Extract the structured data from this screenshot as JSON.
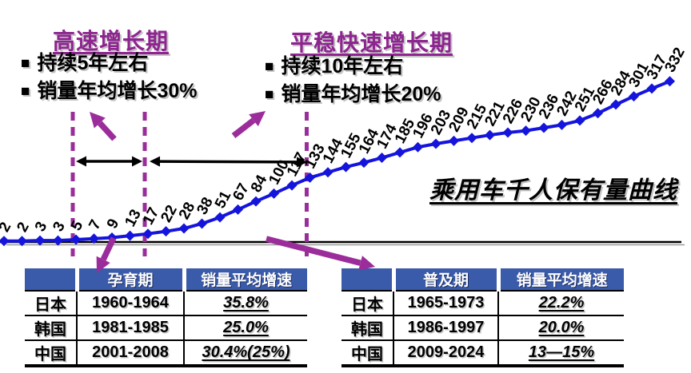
{
  "colors": {
    "purple_title": "#8E2490",
    "purple_accent": "#9B2D9B",
    "curve_blue": "#1414DC",
    "table_header_blue": "#3A5BA9",
    "shadow_gray": "#C4C4C4",
    "axis_black": "#000000"
  },
  "bullet_glyph": "■",
  "growth_periods": [
    {
      "title": "高速增长期",
      "bullets": [
        "持续5年左右",
        "销量年均增长30%"
      ]
    },
    {
      "title": "平稳快速增长期",
      "bullets": [
        "持续10年左右",
        "销量年均增长20%"
      ]
    }
  ],
  "caption": "乘用车千人保有量曲线",
  "chart_data": {
    "type": "line",
    "title": "乘用车千人保有量曲线",
    "values": [
      2,
      2,
      3,
      3,
      5,
      7,
      9,
      13,
      17,
      22,
      28,
      38,
      51,
      67,
      84,
      100,
      117,
      133,
      144,
      155,
      164,
      174,
      185,
      196,
      203,
      209,
      215,
      221,
      226,
      230,
      236,
      242,
      251,
      266,
      284,
      301,
      317,
      332
    ],
    "marker": "diamond",
    "data_labels": true,
    "label_rotation_deg": -62,
    "grid": false,
    "ylim": [
      0,
      350
    ],
    "annotations": {
      "dashed_lines_at_values": [
        5,
        17,
        133
      ],
      "phase_spans": [
        {
          "label": "高速增长期",
          "from_value": 5,
          "to_value": 17
        },
        {
          "label": "平稳快速增长期",
          "from_value": 17,
          "to_value": 133
        }
      ]
    }
  },
  "tables": [
    {
      "headers": [
        "",
        "孕育期",
        "销量平均增速"
      ],
      "rows": [
        [
          "日本",
          "1960-1964",
          "35.8%"
        ],
        [
          "韩国",
          "1981-1985",
          "25.0%"
        ],
        [
          "中国",
          "2001-2008",
          "30.4%(25%)"
        ]
      ]
    },
    {
      "headers": [
        "",
        "普及期",
        "销量平均增速"
      ],
      "rows": [
        [
          "日本",
          "1965-1973",
          "22.2%"
        ],
        [
          "韩国",
          "1986-1997",
          "20.0%"
        ],
        [
          "中国",
          "2009-2024",
          "13—15%"
        ]
      ]
    }
  ]
}
